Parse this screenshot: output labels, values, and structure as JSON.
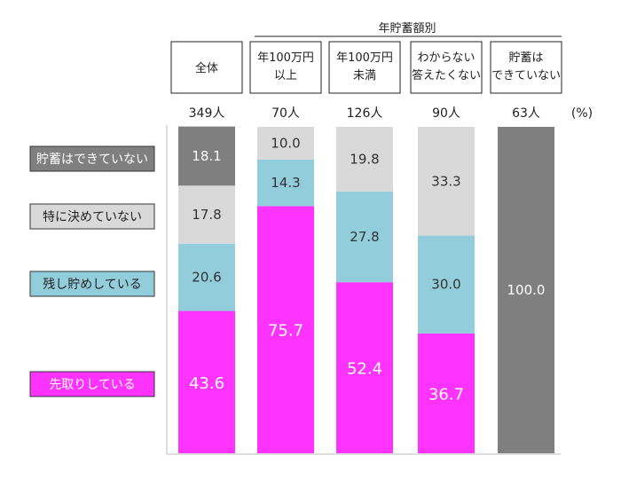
{
  "group_header": "年貯蓄額別",
  "unit": "(%)",
  "columns": [
    {
      "header": [
        "全体"
      ],
      "n": "349人"
    },
    {
      "header": [
        "年100万円",
        "以上"
      ],
      "n": "70人"
    },
    {
      "header": [
        "年100万円",
        "未満"
      ],
      "n": "126人"
    },
    {
      "header": [
        "わからない",
        "答えたくない"
      ],
      "n": "90人"
    },
    {
      "header": [
        "貯蓄は",
        "できていない"
      ],
      "n": "63人"
    }
  ],
  "legend": [
    {
      "label": "貯蓄はできていない",
      "color": "#7f7f7f",
      "text_color": "#ffffff"
    },
    {
      "label": "特に決めていない",
      "color": "#d9d9d9",
      "text_color": "#222222"
    },
    {
      "label": "残し貯めしている",
      "color": "#92cddc",
      "text_color": "#222222"
    },
    {
      "label": "先取りしている",
      "color": "#ff33ff",
      "text_color": "#ffffff"
    }
  ],
  "chart_data": {
    "type": "bar",
    "stacked": true,
    "categories": [
      "全体",
      "年100万円以上",
      "年100万円未満",
      "わからない答えたくない",
      "貯蓄はできていない"
    ],
    "series": [
      {
        "name": "先取りしている",
        "values": [
          43.6,
          75.7,
          52.4,
          36.7,
          null
        ],
        "color": "#ff33ff",
        "labels": [
          "43.6",
          "75.7",
          "52.4",
          "36.7",
          "-"
        ]
      },
      {
        "name": "残し貯めしている",
        "values": [
          20.6,
          14.3,
          27.8,
          30.0,
          null
        ],
        "color": "#92cddc",
        "labels": [
          "20.6",
          "14.3",
          "27.8",
          "30.0",
          ""
        ]
      },
      {
        "name": "特に決めていない",
        "values": [
          17.8,
          10.0,
          19.8,
          33.3,
          null
        ],
        "color": "#d9d9d9",
        "labels": [
          "17.8",
          "10.0",
          "19.8",
          "33.3",
          ""
        ]
      },
      {
        "name": "貯蓄はできていない",
        "values": [
          18.1,
          null,
          null,
          null,
          100.0
        ],
        "color": "#7f7f7f",
        "labels": [
          "18.1",
          "",
          "",
          "",
          "100.0"
        ]
      }
    ],
    "ylim": [
      0,
      100
    ],
    "ylabel": "(%)",
    "legend": "left"
  }
}
